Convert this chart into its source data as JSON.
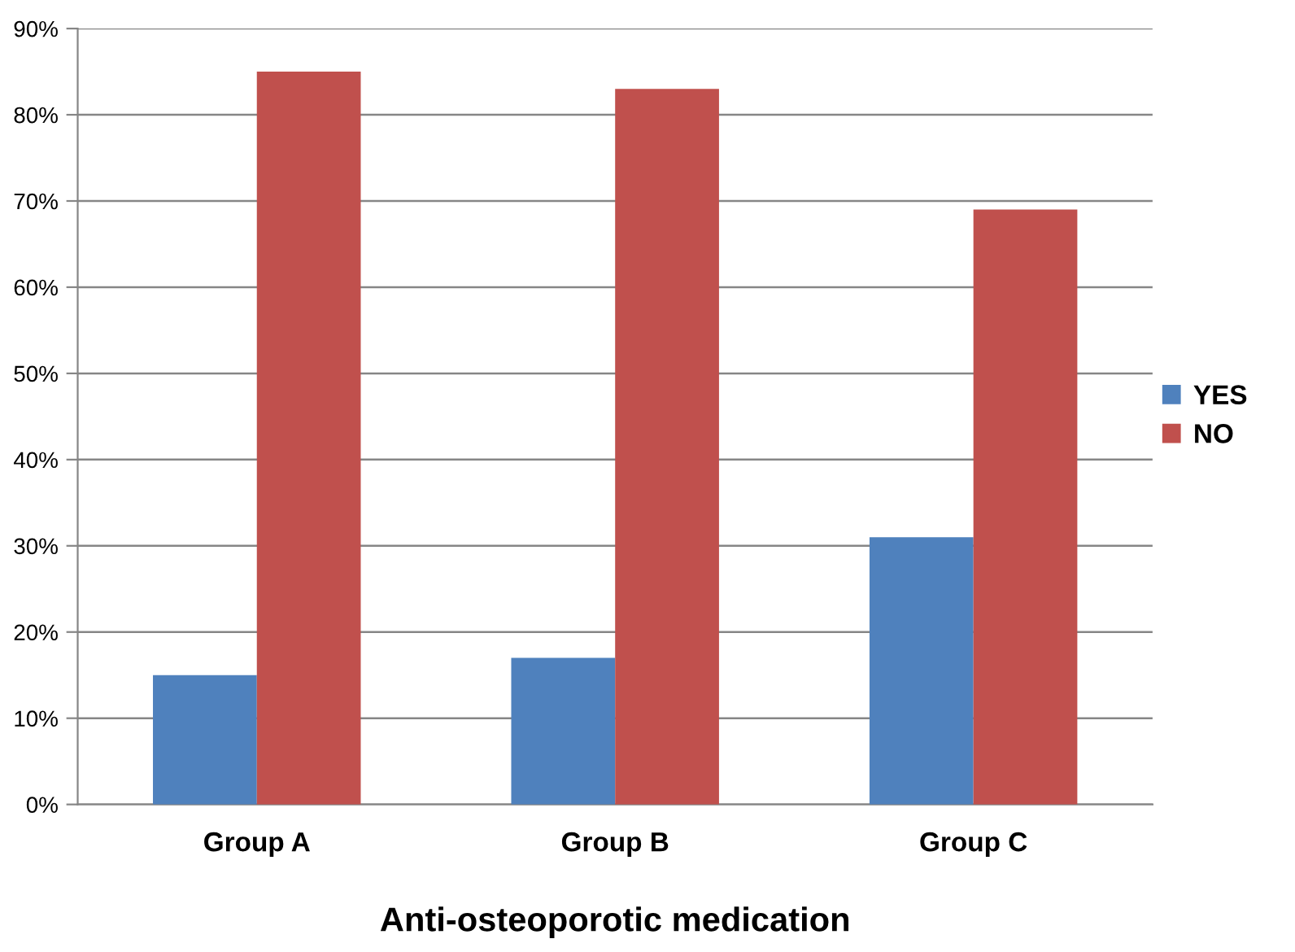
{
  "chart_data": {
    "type": "bar",
    "xlabel": "Anti-osteoporotic medication",
    "categories": [
      "Group A",
      "Group B",
      "Group C"
    ],
    "series": [
      {
        "name": "YES",
        "color": "#4f81bd",
        "values": [
          15,
          17,
          31
        ]
      },
      {
        "name": "NO",
        "color": "#c0504d",
        "values": [
          85,
          83,
          69
        ]
      }
    ],
    "ylim": [
      0,
      90
    ],
    "yticks": [
      {
        "value": 0,
        "label": "0%"
      },
      {
        "value": 10,
        "label": "10%"
      },
      {
        "value": 20,
        "label": "20%"
      },
      {
        "value": 30,
        "label": "30%"
      },
      {
        "value": 40,
        "label": "40%"
      },
      {
        "value": 50,
        "label": "50%"
      },
      {
        "value": 60,
        "label": "60%"
      },
      {
        "value": 70,
        "label": "70%"
      },
      {
        "value": 80,
        "label": "80%"
      },
      {
        "value": 90,
        "label": "90%"
      }
    ],
    "grid": "y",
    "legend": "right"
  }
}
